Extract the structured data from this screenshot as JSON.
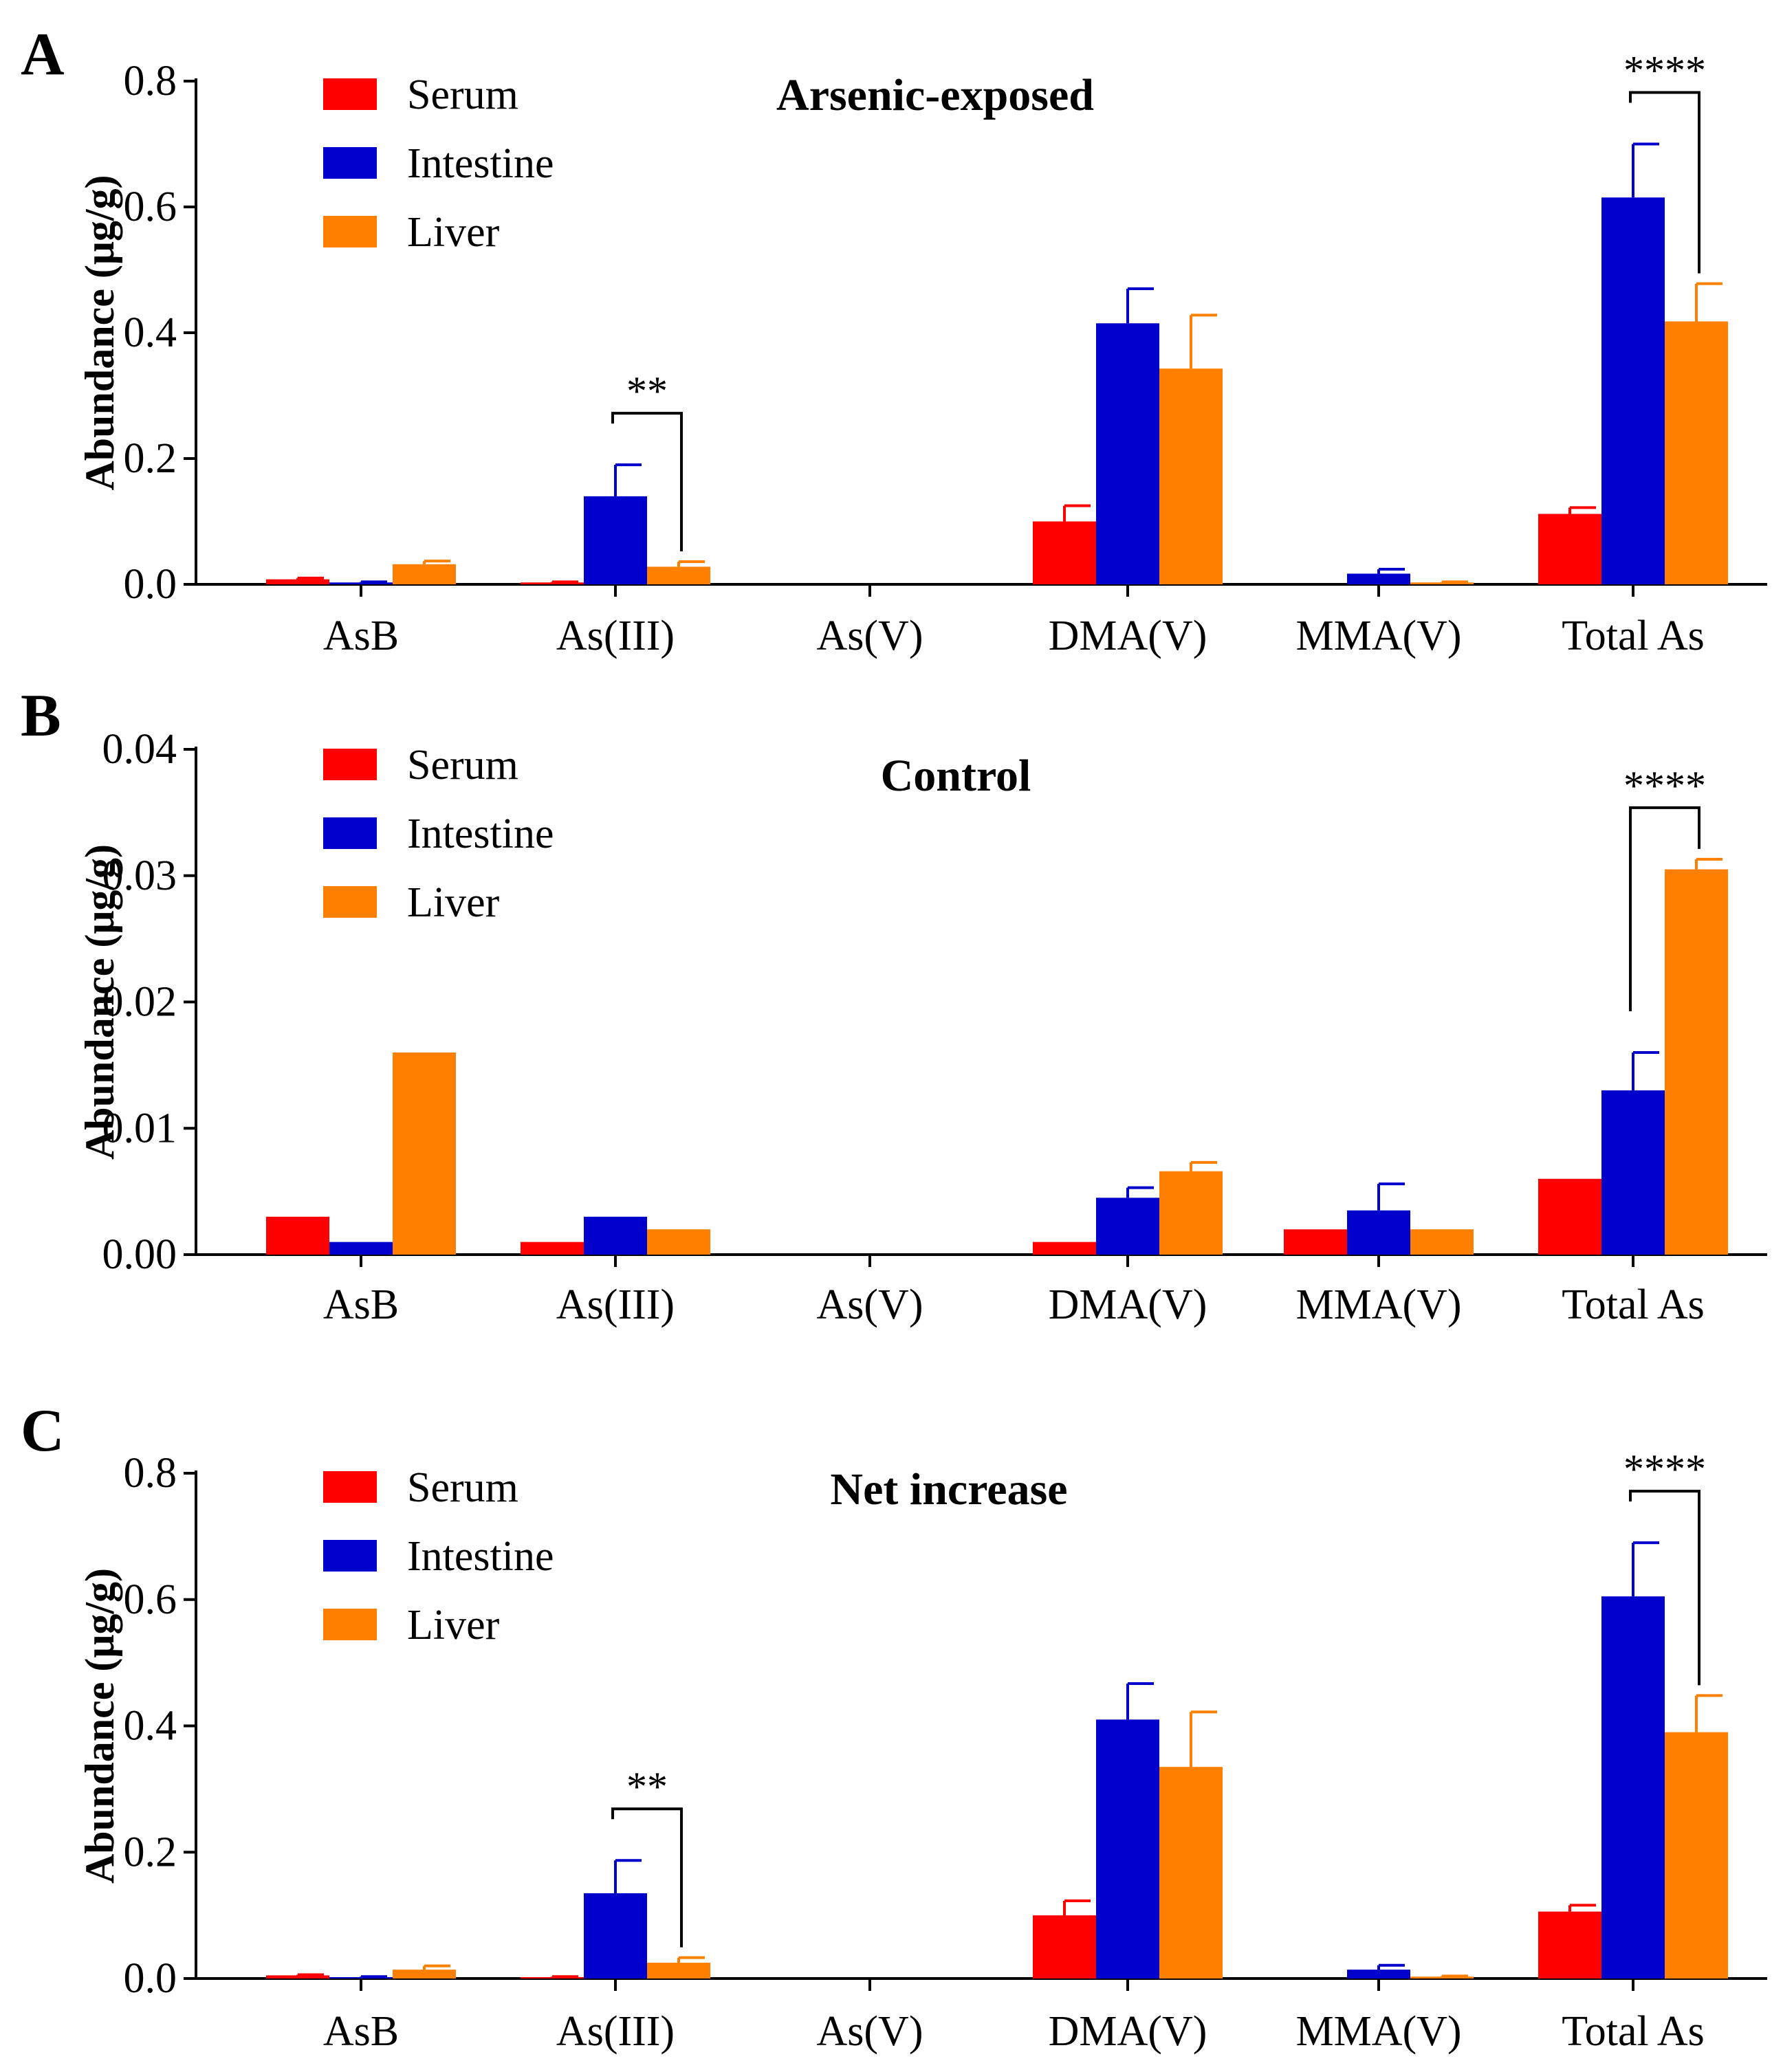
{
  "figure": {
    "panel_labels": [
      "A",
      "B",
      "C"
    ]
  },
  "colors": {
    "Serum": "#ff0000",
    "Intestine": "#0000cc",
    "Liver": "#ff8000"
  },
  "chart_data": [
    {
      "type": "bar",
      "panel": "A",
      "title": "Arsenic-exposed",
      "xlabel": "",
      "ylabel": "Abundance (μg/g)",
      "ylim": [
        0,
        0.8
      ],
      "yticks": [
        "0.0",
        "0.2",
        "0.4",
        "0.6",
        "0.8"
      ],
      "ytick_values": [
        0,
        0.2,
        0.4,
        0.6,
        0.8
      ],
      "categories": [
        "AsB",
        "As(III)",
        "As(V)",
        "DMA(V)",
        "MMA(V)",
        "Total As"
      ],
      "legend": [
        "Serum",
        "Intestine",
        "Liver"
      ],
      "legend_position": "top-left",
      "series": [
        {
          "name": "Serum",
          "values": [
            0.008,
            0.003,
            0,
            0.1,
            0,
            0.112
          ],
          "errors": [
            0.002,
            0.001,
            0,
            0.025,
            0,
            0.01
          ]
        },
        {
          "name": "Intestine",
          "values": [
            0.003,
            0.14,
            0,
            0.415,
            0.017,
            0.615
          ],
          "errors": [
            0.001,
            0.05,
            0,
            0.055,
            0.007,
            0.085
          ]
        },
        {
          "name": "Liver",
          "values": [
            0.032,
            0.028,
            0,
            0.343,
            0.003,
            0.418
          ],
          "errors": [
            0.005,
            0.008,
            0,
            0.085,
            0.001,
            0.06
          ]
        }
      ],
      "annotations": [
        {
          "text": "**",
          "category": "As(III)",
          "from": "Intestine",
          "to": "Liver"
        },
        {
          "text": "****",
          "category": "Total As",
          "from": "Intestine",
          "to": "Liver"
        }
      ]
    },
    {
      "type": "bar",
      "panel": "B",
      "title": "Control",
      "xlabel": "",
      "ylabel": "Abundance (μg/g)",
      "ylim": [
        0,
        0.04
      ],
      "yticks": [
        "0.00",
        "0.01",
        "0.02",
        "0.03",
        "0.04"
      ],
      "ytick_values": [
        0,
        0.01,
        0.02,
        0.03,
        0.04
      ],
      "categories": [
        "AsB",
        "As(III)",
        "As(V)",
        "DMA(V)",
        "MMA(V)",
        "Total As"
      ],
      "legend": [
        "Serum",
        "Intestine",
        "Liver"
      ],
      "legend_position": "top-left",
      "series": [
        {
          "name": "Serum",
          "values": [
            0.003,
            0.001,
            0,
            0.001,
            0.002,
            0.006
          ],
          "errors": [
            0,
            0,
            0,
            0,
            0,
            0
          ]
        },
        {
          "name": "Intestine",
          "values": [
            0.001,
            0.003,
            0,
            0.0045,
            0.0035,
            0.013
          ],
          "errors": [
            0,
            0,
            0,
            0.0008,
            0.0021,
            0.003
          ]
        },
        {
          "name": "Liver",
          "values": [
            0.016,
            0.002,
            0,
            0.0066,
            0.002,
            0.0305
          ],
          "errors": [
            0,
            0,
            0,
            0.0007,
            0,
            0.0008
          ]
        }
      ],
      "annotations": [
        {
          "text": "****",
          "category": "Total As",
          "from": "Intestine",
          "to": "Liver"
        }
      ]
    },
    {
      "type": "bar",
      "panel": "C",
      "title": "Net increase",
      "xlabel": "",
      "ylabel": "Abundance (μg/g)",
      "ylim": [
        0,
        0.8
      ],
      "yticks": [
        "0.0",
        "0.2",
        "0.4",
        "0.6",
        "0.8"
      ],
      "ytick_values": [
        0,
        0.2,
        0.4,
        0.6,
        0.8
      ],
      "categories": [
        "AsB",
        "As(III)",
        "As(V)",
        "DMA(V)",
        "MMA(V)",
        "Total As"
      ],
      "legend": [
        "Serum",
        "Intestine",
        "Liver"
      ],
      "legend_position": "top-left",
      "series": [
        {
          "name": "Serum",
          "values": [
            0.005,
            0.002,
            0,
            0.1,
            0,
            0.106
          ],
          "errors": [
            0.001,
            0.001,
            0,
            0.023,
            0,
            0.01
          ]
        },
        {
          "name": "Intestine",
          "values": [
            0.002,
            0.135,
            0,
            0.41,
            0.014,
            0.605
          ],
          "errors": [
            0.001,
            0.052,
            0,
            0.057,
            0.007,
            0.085
          ]
        },
        {
          "name": "Liver",
          "values": [
            0.014,
            0.025,
            0,
            0.335,
            0.003,
            0.39
          ],
          "errors": [
            0.006,
            0.008,
            0,
            0.087,
            0.001,
            0.058
          ]
        }
      ],
      "annotations": [
        {
          "text": "**",
          "category": "As(III)",
          "from": "Intestine",
          "to": "Liver"
        },
        {
          "text": "****",
          "category": "Total As",
          "from": "Intestine",
          "to": "Liver"
        }
      ]
    }
  ]
}
